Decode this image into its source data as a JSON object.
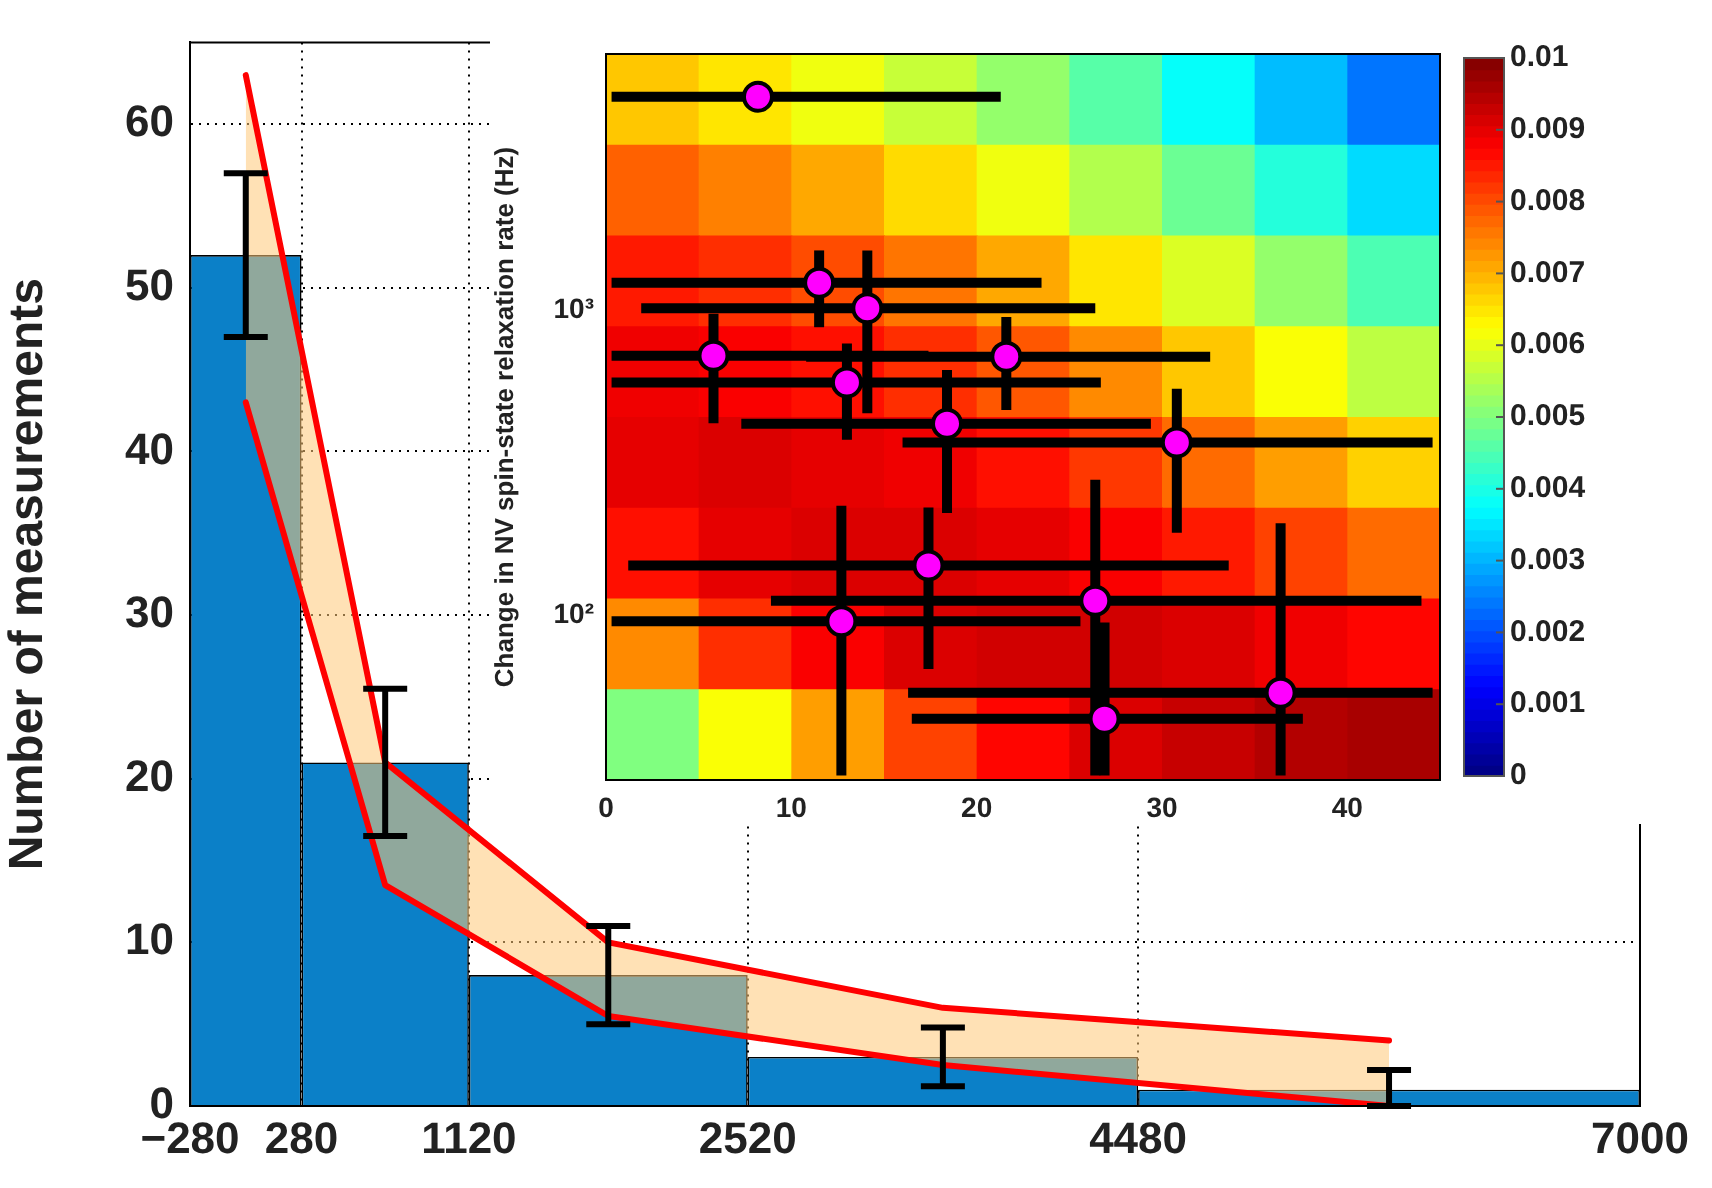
{
  "chart_data": [
    {
      "type": "histogram",
      "ylabel": "Number of measurements",
      "bins": [
        -280,
        280,
        1120,
        2520,
        4480,
        7000
      ],
      "xlim": [
        -280,
        7000
      ],
      "xticks": [
        {
          "value": -280,
          "label": "−280"
        },
        280,
        1120,
        2520,
        4480,
        7000
      ],
      "ylim": [
        0,
        65
      ],
      "yticks": [
        0,
        10,
        20,
        30,
        40,
        50,
        60
      ],
      "grid": true,
      "series": [
        {
          "type": "histogram",
          "color": "#0b80c8",
          "values": [
            52,
            21,
            8,
            3,
            1
          ],
          "errors": [
            [
              47,
              57
            ],
            [
              16.5,
              25.5
            ],
            [
              5,
              11
            ],
            [
              1.2,
              4.8
            ],
            [
              0,
              2.2
            ]
          ]
        },
        {
          "type": "area",
          "color": "#ffc878",
          "x": [
            0,
            700,
            1820,
            3500,
            5740
          ],
          "values": [
            null,
            null,
            null,
            null,
            null
          ],
          "lower": [
            43,
            13.5,
            5.5,
            2.5,
            0
          ],
          "upper": [
            63,
            21,
            10,
            6,
            4
          ]
        },
        {
          "type": "line",
          "color": "#ff0000",
          "x": [
            0,
            700,
            1820,
            3500,
            5740
          ],
          "values": [
            43,
            13.5,
            5.5,
            2.5,
            0
          ]
        },
        {
          "type": "line",
          "color": "#ff0000",
          "x": [
            0,
            700,
            1820,
            3500,
            5740
          ],
          "values": [
            63,
            21,
            10,
            6,
            4
          ]
        }
      ]
    },
    {
      "type": "heatmap",
      "ylabel": "Change in NV spin-state relaxation rate (Hz)",
      "xlim": [
        0,
        45
      ],
      "xticks": [
        0,
        10,
        20,
        30,
        40
      ],
      "ylim": [
        29,
        6900
      ],
      "yticks": [
        {
          "value": 100,
          "label": "10²"
        },
        {
          "value": 1000,
          "label": "10³"
        }
      ],
      "log": "y",
      "marker": "circle",
      "clim": [
        0,
        0.01
      ],
      "cticks": [
        0,
        0.001,
        0.002,
        0.003,
        0.004,
        0.005,
        0.006,
        0.007,
        0.008,
        0.009,
        0.01
      ],
      "cells": [
        [
          0.0068,
          0.0065,
          0.0061,
          0.0057,
          0.0052,
          0.0046,
          0.0038,
          0.0031,
          0.0024
        ],
        [
          0.0078,
          0.0075,
          0.0071,
          0.0066,
          0.0061,
          0.0055,
          0.0048,
          0.0041,
          0.0034
        ],
        [
          0.0085,
          0.0083,
          0.008,
          0.0076,
          0.0071,
          0.0065,
          0.0059,
          0.0052,
          0.0045
        ],
        [
          0.0089,
          0.0088,
          0.0086,
          0.0083,
          0.0079,
          0.0074,
          0.0068,
          0.0062,
          0.0056
        ],
        [
          0.009,
          0.0091,
          0.009,
          0.0089,
          0.0086,
          0.0082,
          0.0077,
          0.0072,
          0.0067
        ],
        [
          0.0086,
          0.009,
          0.0091,
          0.0091,
          0.009,
          0.0088,
          0.0085,
          0.0081,
          0.0077
        ],
        [
          0.0074,
          0.0083,
          0.0088,
          0.0091,
          0.0092,
          0.0092,
          0.0091,
          0.0089,
          0.0087
        ],
        [
          0.005,
          0.0062,
          0.0072,
          0.0081,
          0.0087,
          0.0091,
          0.0093,
          0.0095,
          0.0096
        ]
      ],
      "series": [
        {
          "type": "scatter",
          "color": "#ff00ff",
          "x": [
            8.2,
            11.5,
            14.1,
            5.8,
            13,
            21.6,
            18.4,
            30.8,
            17.4,
            26.4,
            12.7,
            36.4,
            26.9
          ],
          "values": [
            5000,
            1230,
            1015,
            710,
            580,
            705,
            425,
            369,
            146,
            112,
            96,
            56,
            46
          ],
          "xerrors": [
            [
              0.3,
              21.3
            ],
            [
              0.3,
              23.5
            ],
            [
              1.9,
              26.4
            ],
            [
              0.3,
              17.4
            ],
            [
              0.3,
              26.7
            ],
            [
              10.8,
              32.6
            ],
            [
              7.3,
              29.4
            ],
            [
              16,
              44.6
            ],
            [
              1.2,
              33.6
            ],
            [
              8.9,
              44
            ],
            [
              0.3,
              25.6
            ],
            [
              16.3,
              44.6
            ],
            [
              16.5,
              37.6
            ]
          ],
          "errors": [
            null,
            [
              880,
              1570
            ],
            [
              460,
              1570
            ],
            [
              427,
              975
            ],
            [
              377,
              778
            ],
            [
              472,
              950
            ],
            [
              217,
              637
            ],
            [
              187,
              553
            ],
            [
              67,
              226
            ],
            [
              30,
              279
            ],
            [
              30,
              229
            ],
            [
              30,
              201
            ],
            [
              30,
              95
            ]
          ]
        }
      ]
    }
  ]
}
